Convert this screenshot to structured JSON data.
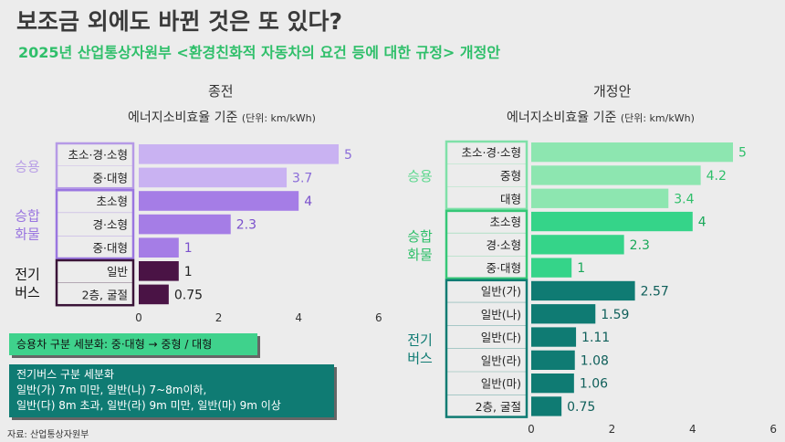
{
  "title": "보조금 외에도 바뀐 것은 또 있다?",
  "subtitle": "2025년 산업통상자원부 <환경친화적 자동차의 요건 등에 대한 규정> 개정안",
  "chart_data": [
    {
      "type": "bar",
      "orientation": "horizontal",
      "panel_title": "종전",
      "axis_title": "에너지소비효율 기준",
      "unit": "(단위: km/kWh)",
      "xlim": [
        0,
        6
      ],
      "ticks": [
        "0",
        "2",
        "4",
        "6"
      ],
      "groups": [
        {
          "label": "승용",
          "label_color": "#b9a0e6",
          "box_color": "#b69ae6",
          "bar_color": "#c9b2f2",
          "categories": [
            "초소·경·소형",
            "중·대형"
          ],
          "values": [
            5,
            3.7
          ],
          "value_labels": [
            "5",
            "3.7"
          ],
          "value_color": "#8a6bd8"
        },
        {
          "label": "승합\n화물",
          "label_color": "#9a76e0",
          "box_color": "#9a76e0",
          "bar_color": "#a57de6",
          "categories": [
            "초소형",
            "경·소형",
            "중·대형"
          ],
          "values": [
            4,
            2.3,
            1
          ],
          "value_labels": [
            "4",
            "2.3",
            "1"
          ],
          "value_color": "#7a50cc"
        },
        {
          "label": "전기\n버스",
          "label_color": "#111111",
          "box_color": "#3a1438",
          "bar_color": "#4a1345",
          "categories": [
            "일반",
            "2층, 굴절"
          ],
          "values": [
            1,
            0.75
          ],
          "value_labels": [
            "1",
            "0.75"
          ],
          "value_color": "#222222"
        }
      ]
    },
    {
      "type": "bar",
      "orientation": "horizontal",
      "panel_title": "개정안",
      "axis_title": "에너지소비효율 기준",
      "unit": "(단위: km/kWh)",
      "xlim": [
        0,
        6
      ],
      "ticks": [
        "0",
        "2",
        "4",
        "6"
      ],
      "groups": [
        {
          "label": "승용",
          "label_color": "#5fd890",
          "box_color": "#7fe0a8",
          "bar_color": "#8de6b0",
          "categories": [
            "초소·경·소형",
            "중형",
            "대형"
          ],
          "values": [
            5,
            4.2,
            3.4
          ],
          "value_labels": [
            "5",
            "4.2",
            "3.4"
          ],
          "value_color": "#2fbf6a"
        },
        {
          "label": "승합\n화물",
          "label_color": "#2fbf6a",
          "box_color": "#35c777",
          "bar_color": "#35d489",
          "categories": [
            "초소형",
            "경·소형",
            "중·대형"
          ],
          "values": [
            4,
            2.3,
            1
          ],
          "value_labels": [
            "4",
            "2.3",
            "1"
          ],
          "value_color": "#1aa85a"
        },
        {
          "label": "전기\n버스",
          "label_color": "#0f7b73",
          "box_color": "#0f7b73",
          "bar_color": "#0f7b73",
          "categories": [
            "일반(가)",
            "일반(나)",
            "일반(다)",
            "일반(라)",
            "일반(마)",
            "2층, 굴절"
          ],
          "values": [
            2.57,
            1.59,
            1.11,
            1.08,
            1.06,
            0.75
          ],
          "value_labels": [
            "2.57",
            "1.59",
            "1.11",
            "1.08",
            "1.06",
            "0.75"
          ],
          "value_color": "#0f5f5a"
        }
      ]
    }
  ],
  "note_passenger": "승용차 구분 세분화: 중·대형 → 중형 / 대형",
  "note_bus": {
    "title": "전기버스 구분 세분화",
    "line1": "일반(가) 7m 미만, 일반(나) 7~8m이하,",
    "line2": "일반(다) 8m 초과, 일반(라) 9m 미만, 일반(마) 9m 이상"
  },
  "source": "자료: 산업통상자원부"
}
